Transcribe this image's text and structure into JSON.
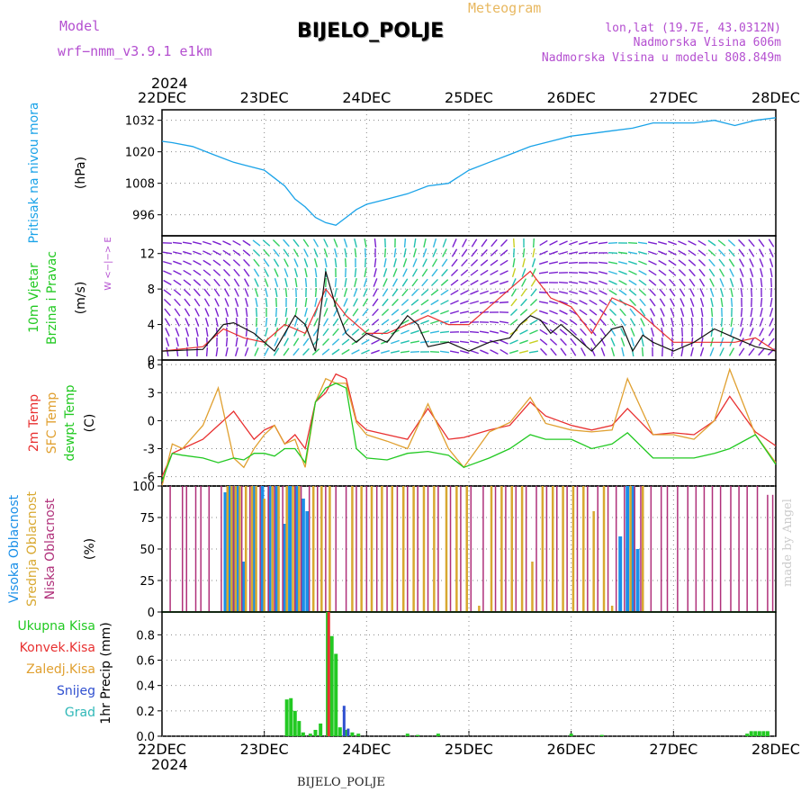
{
  "header": {
    "model_label": "Model",
    "model": "wrf−nmm_v3.9.1  e1km",
    "title": "BIJELO_POLJE",
    "subtitle": "Meteogram",
    "lonlat": "lon,lat (19.7E, 43.0312N)",
    "altitude": "Nadmorska Visina 606m",
    "model_altitude": "Nadmorska Visina u modelu 808.849m"
  },
  "footer": {
    "station": "BIJELO_POLJE",
    "credit": "made by Angel"
  },
  "colors": {
    "pressure": "#1aa3e8",
    "temp2m": "#e83030",
    "sfc": "#e0a030",
    "dewpt": "#22c922",
    "high": "#1a8fe8",
    "mid": "#d8a830",
    "low": "#b0307a",
    "total": "#22c922",
    "conv": "#e83030",
    "snow": "#3050d0",
    "grad": "#30b8b8",
    "wind_trace": "#111111",
    "gust": "#e83030"
  },
  "chart_data": [
    {
      "type": "line",
      "panel": "pressure",
      "ylabel": [
        "Pritisak na nivou mora",
        "(hPa)"
      ],
      "ylim": [
        988,
        1036
      ],
      "yticks": [
        996,
        1008,
        1020,
        1032
      ],
      "x_dates": [
        "22DEC",
        "23DEC",
        "24DEC",
        "25DEC",
        "26DEC",
        "27DEC",
        "28DEC"
      ],
      "year": "2024",
      "series": [
        {
          "x": [
            0,
            0.1,
            0.3,
            0.5,
            0.7,
            0.8,
            1.0,
            1.1,
            1.2,
            1.3,
            1.4,
            1.5,
            1.6,
            1.7,
            1.8,
            1.9,
            2.0,
            2.2,
            2.4,
            2.6,
            2.8,
            3.0,
            3.2,
            3.4,
            3.6,
            3.8,
            4.0,
            4.2,
            4.4,
            4.6,
            4.8,
            5.0,
            5.2,
            5.4,
            5.6,
            5.8,
            6.0
          ],
          "y": [
            1024,
            1023.5,
            1022,
            1019,
            1016,
            1015,
            1013,
            1010,
            1007,
            1002,
            999,
            995,
            993,
            992,
            995,
            998,
            1000,
            1002,
            1004,
            1007,
            1008,
            1013,
            1016,
            1019,
            1022,
            1024,
            1026,
            1027,
            1028,
            1029,
            1031,
            1031,
            1031,
            1032,
            1030,
            1032,
            1033
          ]
        }
      ]
    },
    {
      "type": "line",
      "panel": "wind",
      "ylabel": [
        "10m Vjetar",
        "Brzina i Pravac",
        "(m/s)"
      ],
      "compass": "W  <−|−>  E",
      "ylim": [
        0,
        14
      ],
      "yticks": [
        0,
        4,
        8,
        12
      ],
      "series": [
        {
          "x": [
            0,
            0.4,
            0.6,
            0.7,
            0.9,
            1.0,
            1.1,
            1.3,
            1.4,
            1.5,
            1.6,
            1.7,
            1.8,
            1.9,
            2.0,
            2.2,
            2.4,
            2.5,
            2.6,
            2.8,
            3.0,
            3.2,
            3.4,
            3.5,
            3.6,
            3.7,
            3.8,
            3.9,
            4.0,
            4.2,
            4.4,
            4.5,
            4.6,
            4.7,
            4.8,
            5.0,
            5.2,
            5.4,
            5.5,
            5.6,
            5.8,
            6.0
          ],
          "y": [
            1,
            1.2,
            4,
            4.2,
            3,
            2,
            1,
            5,
            4,
            1,
            10,
            6,
            3,
            2,
            3,
            2,
            5,
            4,
            1.5,
            2,
            1,
            2,
            2.5,
            4,
            5,
            4.5,
            3,
            4,
            3,
            1,
            3.5,
            3.8,
            1,
            2.8,
            2,
            1,
            2,
            3.5,
            3,
            2.5,
            1.5,
            1
          ]
        },
        {
          "x": [
            0,
            0.4,
            0.6,
            0.8,
            1.0,
            1.2,
            1.4,
            1.6,
            1.8,
            2.0,
            2.2,
            2.4,
            2.6,
            2.8,
            3.0,
            3.2,
            3.4,
            3.6,
            3.8,
            4.0,
            4.2,
            4.4,
            4.6,
            4.8,
            5.0,
            5.2,
            5.4,
            5.6,
            5.8,
            6.0
          ],
          "y": [
            1,
            1.5,
            3.5,
            2.5,
            2,
            4,
            3,
            8,
            5,
            3,
            3,
            4,
            5,
            4,
            4,
            6,
            8,
            10,
            7,
            6,
            3,
            7,
            6,
            4,
            2,
            2,
            2,
            2,
            2.5,
            1
          ]
        }
      ]
    },
    {
      "type": "line",
      "panel": "temperature",
      "ylabel": [
        "2m Temp",
        "SFC Temp",
        "dewpt Temp",
        "(C)"
      ],
      "ylim": [
        -7,
        6.5
      ],
      "yticks": [
        -6,
        -3,
        0,
        3,
        6
      ],
      "series": [
        {
          "x": [
            0,
            0.1,
            0.2,
            0.4,
            0.55,
            0.7,
            0.8,
            0.9,
            1.0,
            1.1,
            1.2,
            1.3,
            1.4,
            1.5,
            1.6,
            1.7,
            1.8,
            1.9,
            2.0,
            2.2,
            2.4,
            2.6,
            2.8,
            2.95,
            3.2,
            3.4,
            3.6,
            3.75,
            4.0,
            4.2,
            4.4,
            4.55,
            4.8,
            5.0,
            5.2,
            5.4,
            5.55,
            5.8,
            6.0
          ],
          "y": [
            -6,
            -3.5,
            -3,
            -2,
            -0.5,
            1,
            -0.5,
            -2,
            -1,
            -0.5,
            -2.5,
            -1.5,
            -3,
            2,
            3,
            5,
            4.5,
            0,
            -1,
            -1.5,
            -2,
            1.3,
            -2,
            -1.8,
            -1,
            -0.5,
            2,
            0.5,
            -0.5,
            -1,
            -0.5,
            1.3,
            -1.5,
            -1.3,
            -1.5,
            0,
            2.6,
            -1.2,
            -2.7
          ]
        },
        {
          "x": [
            0,
            0.1,
            0.2,
            0.4,
            0.55,
            0.7,
            0.8,
            0.9,
            1.0,
            1.1,
            1.2,
            1.3,
            1.4,
            1.5,
            1.6,
            1.7,
            1.8,
            1.9,
            2.0,
            2.2,
            2.4,
            2.6,
            2.8,
            2.95,
            3.2,
            3.4,
            3.6,
            3.75,
            4.0,
            4.2,
            4.4,
            4.55,
            4.8,
            5.0,
            5.2,
            5.4,
            5.55,
            5.8,
            6.0
          ],
          "y": [
            -7,
            -2.5,
            -3,
            -0.5,
            3.5,
            -4,
            -5,
            -3,
            -1.5,
            -0.5,
            -2.5,
            -2,
            -5,
            2,
            4.5,
            4,
            4,
            -0.2,
            -1.5,
            -2.2,
            -3,
            1.8,
            -3,
            -5,
            -1.2,
            -0.2,
            2.5,
            -0.3,
            -1,
            -1.2,
            -1,
            4.5,
            -1.5,
            -1.5,
            -2,
            0,
            5.5,
            -1.5,
            -4.5
          ]
        },
        {
          "x": [
            0,
            0.1,
            0.2,
            0.4,
            0.55,
            0.7,
            0.8,
            0.9,
            1.0,
            1.1,
            1.2,
            1.3,
            1.4,
            1.5,
            1.6,
            1.7,
            1.8,
            1.9,
            2.0,
            2.2,
            2.4,
            2.6,
            2.8,
            2.95,
            3.2,
            3.4,
            3.6,
            3.75,
            4.0,
            4.2,
            4.4,
            4.55,
            4.8,
            5.0,
            5.2,
            5.4,
            5.55,
            5.8,
            6.0
          ],
          "y": [
            -6.5,
            -3.5,
            -3.7,
            -4,
            -4.5,
            -4,
            -4.2,
            -3.5,
            -3.5,
            -3.8,
            -3,
            -3,
            -4.5,
            2,
            3.5,
            4,
            3.5,
            -3,
            -4,
            -4.2,
            -3.5,
            -3.3,
            -3.7,
            -5,
            -4,
            -3,
            -1.5,
            -2,
            -2,
            -3,
            -2.5,
            -1.3,
            -4,
            -4,
            -4,
            -3.5,
            -3,
            -1.5,
            -4.7
          ]
        }
      ]
    },
    {
      "type": "bar",
      "panel": "clouds",
      "ylabel": [
        "Visoka Oblacnost",
        "Srednja Oblacnost",
        "Niska Oblacnost",
        "(%)"
      ],
      "ylim": [
        0,
        100
      ],
      "yticks": [
        0,
        25,
        50,
        75,
        100
      ],
      "series": [
        {
          "name": "high",
          "x": [
            0.62,
            0.66,
            0.7,
            0.74,
            0.8,
            0.9,
            0.98,
            1.05,
            1.12,
            1.2,
            1.25,
            1.32,
            1.38,
            1.42,
            4.48,
            4.55,
            4.6,
            4.65
          ],
          "values": [
            95,
            100,
            100,
            100,
            40,
            100,
            100,
            100,
            100,
            70,
            100,
            100,
            90,
            80,
            60,
            100,
            100,
            50
          ]
        },
        {
          "name": "mid",
          "x": [
            0.64,
            0.68,
            0.72,
            0.76,
            0.82,
            0.88,
            0.92,
            1.0,
            1.08,
            1.14,
            1.22,
            1.28,
            1.34,
            1.48,
            1.56,
            1.64,
            1.86,
            1.95,
            2.05,
            2.15,
            2.25,
            2.36,
            2.46,
            2.56,
            2.66,
            2.78,
            2.88,
            2.98,
            3.1,
            3.22,
            3.32,
            3.42,
            3.52,
            3.62,
            3.72,
            3.82,
            3.92,
            4.02,
            4.12,
            4.22,
            4.32,
            4.4,
            4.58,
            4.7
          ],
          "values": [
            100,
            100,
            100,
            100,
            100,
            100,
            100,
            90,
            100,
            100,
            100,
            100,
            100,
            100,
            100,
            100,
            100,
            100,
            100,
            100,
            100,
            100,
            100,
            100,
            100,
            100,
            100,
            100,
            5,
            100,
            100,
            100,
            100,
            40,
            100,
            100,
            100,
            100,
            100,
            80,
            100,
            5,
            100,
            100
          ]
        },
        {
          "name": "low",
          "x": [
            0.08,
            0.2,
            0.24,
            0.33,
            0.38,
            0.46,
            0.58,
            0.7,
            0.78,
            0.86,
            0.96,
            1.04,
            1.1,
            1.18,
            1.3,
            1.36,
            1.44,
            1.52,
            1.6,
            1.7,
            1.8,
            1.9,
            2.0,
            2.1,
            2.2,
            2.3,
            2.4,
            2.5,
            2.6,
            2.7,
            2.82,
            2.92,
            3.02,
            3.14,
            3.26,
            3.36,
            3.46,
            3.56,
            3.66,
            3.76,
            3.86,
            3.96,
            4.06,
            4.16,
            4.26,
            4.36,
            4.44,
            4.52,
            4.62,
            4.68,
            4.78,
            4.88,
            4.94,
            5.04,
            5.14,
            5.22,
            5.3,
            5.38,
            5.46,
            5.56,
            5.64,
            5.72,
            5.82,
            5.92,
            5.97
          ],
          "values": [
            100,
            100,
            100,
            100,
            100,
            100,
            100,
            100,
            100,
            100,
            100,
            100,
            100,
            100,
            100,
            100,
            100,
            100,
            100,
            100,
            100,
            100,
            100,
            100,
            100,
            100,
            100,
            100,
            100,
            100,
            100,
            100,
            100,
            100,
            100,
            100,
            100,
            100,
            100,
            100,
            100,
            100,
            100,
            100,
            100,
            100,
            100,
            100,
            100,
            100,
            100,
            100,
            100,
            100,
            100,
            100,
            100,
            100,
            100,
            100,
            100,
            100,
            100,
            93,
            93
          ]
        }
      ]
    },
    {
      "type": "bar",
      "panel": "precipitation",
      "ylabel": [
        "1hr Precip (mm)"
      ],
      "legend": [
        "Ukupna Kisa",
        "Konvek.Kisa",
        "Zaledj.Kisa",
        "Snijeg",
        "Grad"
      ],
      "ylim": [
        0,
        0.98
      ],
      "yticks": [
        0,
        0.2,
        0.4,
        0.6,
        0.8
      ],
      "bars_total": {
        "x": [
          1.22,
          1.26,
          1.3,
          1.34,
          1.38,
          1.45,
          1.5,
          1.55,
          1.62,
          1.66,
          1.7,
          1.74,
          1.8,
          1.86,
          1.92,
          2.4,
          2.5,
          2.7,
          4.0,
          4.3,
          5.72,
          5.76,
          5.8,
          5.84,
          5.88,
          5.92
        ],
        "values": [
          0.29,
          0.3,
          0.2,
          0.12,
          0.03,
          0.02,
          0.05,
          0.1,
          0.98,
          0.79,
          0.65,
          0.07,
          0.05,
          0.03,
          0.02,
          0.02,
          0.01,
          0.02,
          0.02,
          0.01,
          0.02,
          0.04,
          0.04,
          0.04,
          0.04,
          0.04
        ]
      },
      "bars_conv": {
        "x": [
          1.63
        ],
        "values": [
          0.98
        ]
      },
      "bars_snow": {
        "x": [
          1.78,
          1.82
        ],
        "values": [
          0.24,
          0.06
        ]
      }
    }
  ]
}
